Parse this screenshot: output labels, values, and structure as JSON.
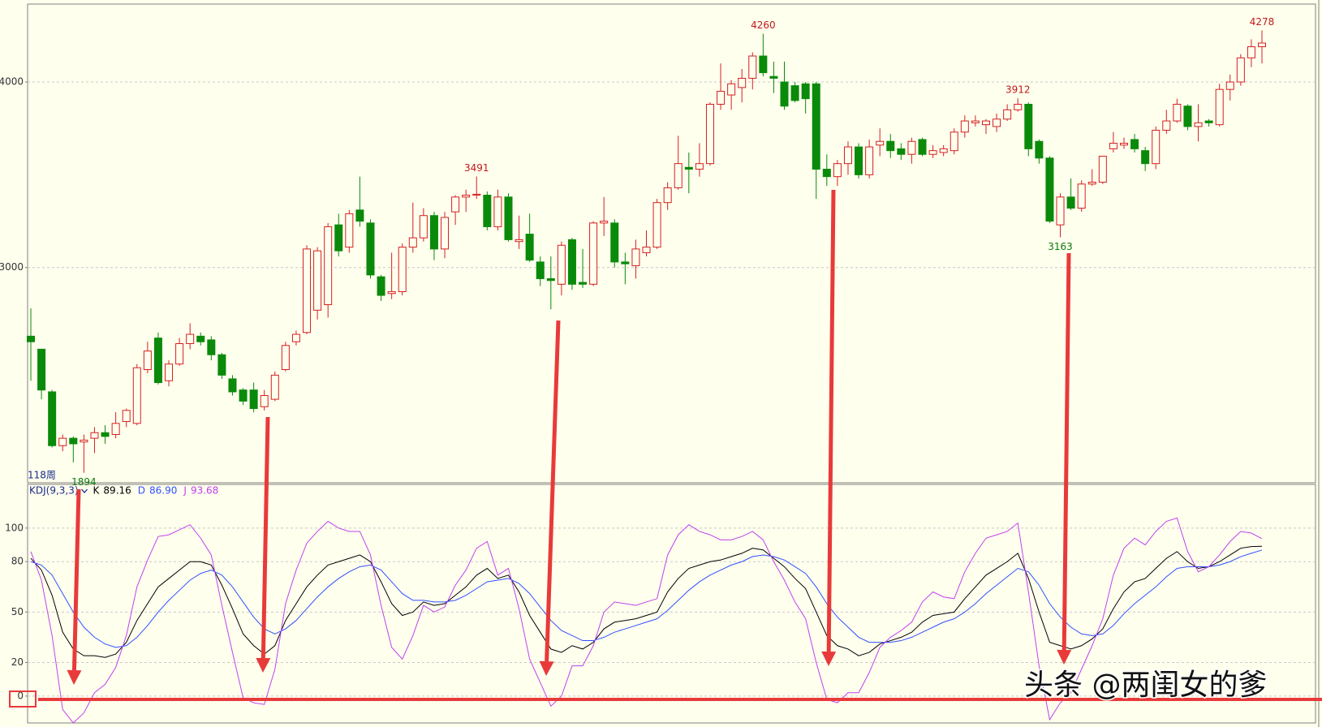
{
  "chart_data": [
    {
      "type": "candlestick",
      "period_label": "118周",
      "open": [
        2630,
        2560,
        2330,
        2040,
        2080,
        2060,
        2080,
        2110,
        2100,
        2170,
        2160,
        2450,
        2620,
        2390,
        2480,
        2590,
        2630,
        2610,
        2530,
        2400,
        2340,
        2340,
        2250,
        2290,
        2450,
        2600,
        2650,
        2770,
        2800,
        3230,
        3110,
        3310,
        3240,
        2950,
        2860,
        2870,
        3110,
        3160,
        3280,
        3100,
        3300,
        3380,
        3390,
        3390,
        3220,
        3380,
        3140,
        3180,
        3030,
        2940,
        2910,
        3150,
        2920,
        2910,
        3240,
        3240,
        3030,
        3010,
        3080,
        3110,
        3350,
        3430,
        3540,
        3530,
        3560,
        3880,
        3930,
        3970,
        4020,
        4140,
        4030,
        4000,
        3980,
        3990,
        3990,
        3530,
        3490,
        3560,
        3650,
        3500,
        3660,
        3680,
        3640,
        3610,
        3690,
        3610,
        3620,
        3630,
        3730,
        3780,
        3770,
        3760,
        3800,
        3850,
        3880,
        3680,
        3590,
        3230,
        3380,
        3320,
        3450,
        3460,
        3640,
        3660,
        3690,
        3630,
        3560,
        3740,
        3790,
        3870,
        3760,
        3790,
        3770,
        3960,
        4000,
        4130,
        4190
      ],
      "high": [
        2780,
        2560,
        2340,
        2100,
        2090,
        2100,
        2140,
        2150,
        2220,
        2240,
        2480,
        2600,
        2650,
        2500,
        2620,
        2700,
        2650,
        2630,
        2540,
        2420,
        2350,
        2380,
        2340,
        2440,
        2600,
        2660,
        3120,
        3110,
        3240,
        3290,
        3310,
        3490,
        3260,
        2960,
        3080,
        3130,
        3350,
        3320,
        3300,
        3300,
        3390,
        3420,
        3491,
        3410,
        3420,
        3400,
        3280,
        3290,
        3060,
        3060,
        3140,
        3160,
        3100,
        3250,
        3380,
        3260,
        3080,
        3150,
        3200,
        3370,
        3460,
        3710,
        3620,
        3670,
        3890,
        4100,
        4010,
        4070,
        4160,
        4260,
        4110,
        4110,
        4000,
        4000,
        4000,
        3610,
        3580,
        3680,
        3670,
        3690,
        3750,
        3720,
        3670,
        3700,
        3700,
        3660,
        3660,
        3750,
        3820,
        3820,
        3800,
        3830,
        3880,
        3912,
        3890,
        3690,
        3600,
        3400,
        3480,
        3470,
        3530,
        3600,
        3730,
        3700,
        3720,
        3650,
        3760,
        3850,
        3910,
        3880,
        3880,
        3800,
        3990,
        4040,
        4150,
        4230,
        4278
      ],
      "low": [
        2390,
        2290,
        2030,
        2010,
        1950,
        1894,
        2000,
        2050,
        2080,
        2140,
        2150,
        2430,
        2370,
        2360,
        2470,
        2560,
        2580,
        2500,
        2400,
        2310,
        2260,
        2220,
        2230,
        2280,
        2440,
        2580,
        2640,
        2720,
        2730,
        3060,
        3080,
        3220,
        2940,
        2820,
        2830,
        2850,
        3080,
        3140,
        3040,
        3050,
        3230,
        3300,
        3370,
        3200,
        3200,
        3140,
        3100,
        3030,
        2900,
        2775,
        2850,
        2880,
        2890,
        2900,
        3170,
        3000,
        2910,
        2940,
        3060,
        3100,
        3310,
        3420,
        3400,
        3490,
        3550,
        3850,
        3850,
        3890,
        3960,
        4030,
        3940,
        3850,
        3890,
        3830,
        3370,
        3440,
        3440,
        3500,
        3480,
        3480,
        3600,
        3590,
        3580,
        3560,
        3600,
        3590,
        3600,
        3610,
        3700,
        3760,
        3720,
        3730,
        3790,
        3840,
        3600,
        3560,
        3240,
        3163,
        3310,
        3300,
        3440,
        3450,
        3620,
        3640,
        3620,
        3520,
        3530,
        3720,
        3780,
        3740,
        3680,
        3760,
        3760,
        3900,
        3980,
        4080,
        4100
      ],
      "close": [
        2600,
        2340,
        2040,
        2080,
        2050,
        2070,
        2110,
        2090,
        2160,
        2230,
        2460,
        2550,
        2380,
        2480,
        2590,
        2640,
        2600,
        2530,
        2420,
        2330,
        2280,
        2240,
        2310,
        2420,
        2580,
        2640,
        3100,
        3090,
        3220,
        3090,
        3290,
        3250,
        2960,
        2850,
        2870,
        3110,
        3160,
        3280,
        3100,
        3270,
        3380,
        3390,
        3395,
        3220,
        3380,
        3150,
        3150,
        3040,
        2940,
        2930,
        3120,
        2910,
        2910,
        3240,
        3250,
        3030,
        3020,
        3100,
        3110,
        3350,
        3430,
        3560,
        3530,
        3560,
        3880,
        3950,
        3990,
        4020,
        4140,
        4050,
        4020,
        3870,
        3900,
        3910,
        3530,
        3490,
        3560,
        3650,
        3500,
        3650,
        3680,
        3630,
        3610,
        3680,
        3610,
        3630,
        3640,
        3730,
        3790,
        3790,
        3790,
        3800,
        3850,
        3880,
        3640,
        3590,
        3250,
        3380,
        3320,
        3450,
        3460,
        3600,
        3670,
        3670,
        3640,
        3560,
        3740,
        3790,
        3880,
        3760,
        3780,
        3780,
        3960,
        4000,
        4130,
        4190,
        4210
      ],
      "up_color": "#d42020",
      "down_color": "#0a8a0a",
      "ylim": [
        1840,
        4420
      ],
      "yticks": [
        3000,
        4000
      ],
      "grid": true
    },
    {
      "type": "line",
      "title": "KDJ(9,3,3)",
      "series": [
        {
          "name": "K",
          "color": "#000000",
          "legend_value": "89.16",
          "values": [
            82,
            75,
            60,
            38,
            28,
            24,
            24,
            23,
            25,
            32,
            45,
            55,
            65,
            70,
            75,
            80,
            80,
            78,
            66,
            52,
            37,
            30,
            25,
            30,
            45,
            55,
            65,
            72,
            78,
            80,
            82,
            84,
            80,
            68,
            55,
            48,
            50,
            56,
            54,
            55,
            60,
            65,
            72,
            76,
            70,
            72,
            62,
            48,
            38,
            28,
            26,
            30,
            28,
            32,
            40,
            44,
            45,
            46,
            48,
            50,
            62,
            70,
            76,
            78,
            80,
            81,
            83,
            85,
            88,
            87,
            82,
            77,
            70,
            64,
            50,
            36,
            30,
            28,
            24,
            26,
            31,
            33,
            35,
            38,
            44,
            48,
            49,
            50,
            58,
            65,
            72,
            76,
            80,
            85,
            70,
            50,
            32,
            30,
            28,
            30,
            34,
            40,
            52,
            62,
            68,
            70,
            76,
            82,
            86,
            80,
            76,
            77,
            80,
            84,
            88,
            89,
            89.16
          ]
        },
        {
          "name": "D",
          "color": "#3050ff",
          "legend_value": "86.90",
          "values": [
            80,
            78,
            72,
            61,
            50,
            41,
            35,
            31,
            29,
            30,
            35,
            42,
            50,
            57,
            63,
            69,
            73,
            75,
            72,
            65,
            56,
            47,
            40,
            37,
            40,
            45,
            52,
            59,
            65,
            70,
            74,
            77,
            78,
            75,
            68,
            61,
            57,
            57,
            56,
            56,
            57,
            60,
            64,
            68,
            69,
            70,
            67,
            61,
            53,
            45,
            39,
            36,
            33,
            33,
            35,
            38,
            40,
            42,
            44,
            46,
            51,
            57,
            63,
            68,
            72,
            75,
            78,
            80,
            83,
            84,
            83,
            81,
            77,
            73,
            65,
            55,
            47,
            41,
            35,
            32,
            32,
            32,
            33,
            35,
            38,
            41,
            44,
            46,
            50,
            55,
            61,
            66,
            71,
            76,
            74,
            66,
            55,
            47,
            41,
            37,
            36,
            37,
            42,
            49,
            55,
            60,
            65,
            71,
            76,
            77,
            77,
            77,
            78,
            80,
            83,
            85,
            86.9
          ]
        },
        {
          "name": "J",
          "color": "#c040f0",
          "legend_value": "93.68",
          "values": [
            86,
            69,
            36,
            -8,
            -16,
            -10,
            2,
            7,
            17,
            36,
            65,
            81,
            95,
            96,
            99,
            102,
            94,
            84,
            54,
            26,
            -1,
            -4,
            -5,
            16,
            55,
            75,
            91,
            98,
            104,
            100,
            98,
            98,
            84,
            54,
            29,
            22,
            36,
            54,
            50,
            53,
            66,
            75,
            88,
            92,
            72,
            76,
            52,
            22,
            8,
            -6,
            0,
            18,
            18,
            30,
            50,
            56,
            55,
            54,
            56,
            58,
            84,
            96,
            102,
            98,
            96,
            93,
            93,
            95,
            98,
            93,
            80,
            69,
            56,
            46,
            20,
            -2,
            -4,
            2,
            2,
            14,
            29,
            35,
            39,
            44,
            56,
            62,
            59,
            58,
            74,
            85,
            94,
            96,
            98,
            103,
            62,
            18,
            -14,
            -4,
            2,
            16,
            30,
            46,
            72,
            88,
            94,
            90,
            98,
            104,
            106,
            86,
            74,
            77,
            84,
            92,
            98,
            97,
            93.68
          ]
        }
      ],
      "ylim": [
        -16,
        126
      ],
      "yticks": [
        0,
        20,
        50,
        80,
        100
      ],
      "grid": true
    }
  ],
  "watermark": "头条 @两闺女的爹"
}
